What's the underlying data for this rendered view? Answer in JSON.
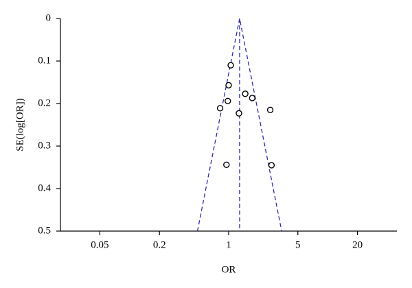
{
  "chart_data": {
    "type": "scatter",
    "xlabel": "OR",
    "ylabel": "SE(log[OR])",
    "x": [
      1.05,
      1.0,
      1.47,
      1.73,
      0.98,
      0.82,
      1.27,
      2.63,
      0.95,
      2.71
    ],
    "values": [
      0.11,
      0.157,
      0.177,
      0.187,
      0.194,
      0.211,
      0.223,
      0.215,
      0.344,
      0.345
    ],
    "color": "#000000",
    "xscale": "log",
    "xlim": [
      0.02,
      50
    ],
    "xticks": [
      0.05,
      0.2,
      1,
      5,
      20
    ],
    "ylim": [
      0,
      0.5
    ],
    "yticks": [
      0,
      0.1,
      0.2,
      0.3,
      0.4,
      0.5
    ],
    "y_inverted": true,
    "funnel": {
      "x": [
        0.484,
        1.29,
        3.43
      ],
      "values": [
        0.5,
        0,
        0.5
      ],
      "color": "#2b2bb0"
    },
    "pooled_line": {
      "x": [
        1.29,
        1.29
      ],
      "values": [
        0,
        0.5
      ],
      "color": "#2b2bb0"
    }
  }
}
